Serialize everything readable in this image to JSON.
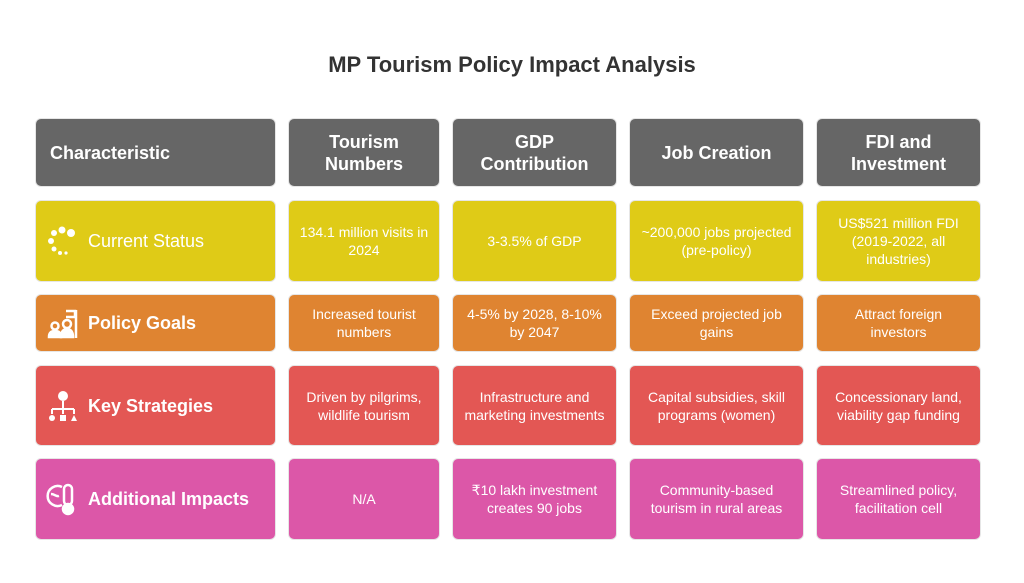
{
  "title": "MP Tourism Policy Impact Analysis",
  "headers": [
    "Characteristic",
    "Tourism Numbers",
    "GDP Contribution",
    "Job Creation",
    "FDI and Investment"
  ],
  "rows": [
    {
      "label": "Current Status",
      "icon": "loading-dots-icon",
      "color": "#dfcb17",
      "cells": [
        "134.1 million visits in 2024",
        "3-3.5% of GDP",
        "~200,000 jobs projected (pre-policy)",
        "US$521 million FDI (2019-2022, all industries)"
      ]
    },
    {
      "label": "Policy Goals",
      "icon": "people-flag-icon",
      "color": "#df8431",
      "cells": [
        "Increased tourist numbers",
        "4-5% by 2028, 8-10% by 2047",
        "Exceed projected job gains",
        "Attract foreign investors"
      ]
    },
    {
      "label": "Key Strategies",
      "icon": "idea-hierarchy-icon",
      "color": "#e35754",
      "cells": [
        "Driven by pilgrims, wildlife tourism",
        "Infrastructure and marketing investments",
        "Capital subsidies, skill programs (women)",
        "Concessionary land, viability gap funding"
      ]
    },
    {
      "label": "Additional Impacts",
      "icon": "globe-thermometer-icon",
      "color": "#dc57a8",
      "cells": [
        "N/A",
        "₹10 lakh investment creates 90 jobs",
        "Community-based tourism in rural areas",
        "Streamlined policy, facilitation cell"
      ]
    }
  ]
}
